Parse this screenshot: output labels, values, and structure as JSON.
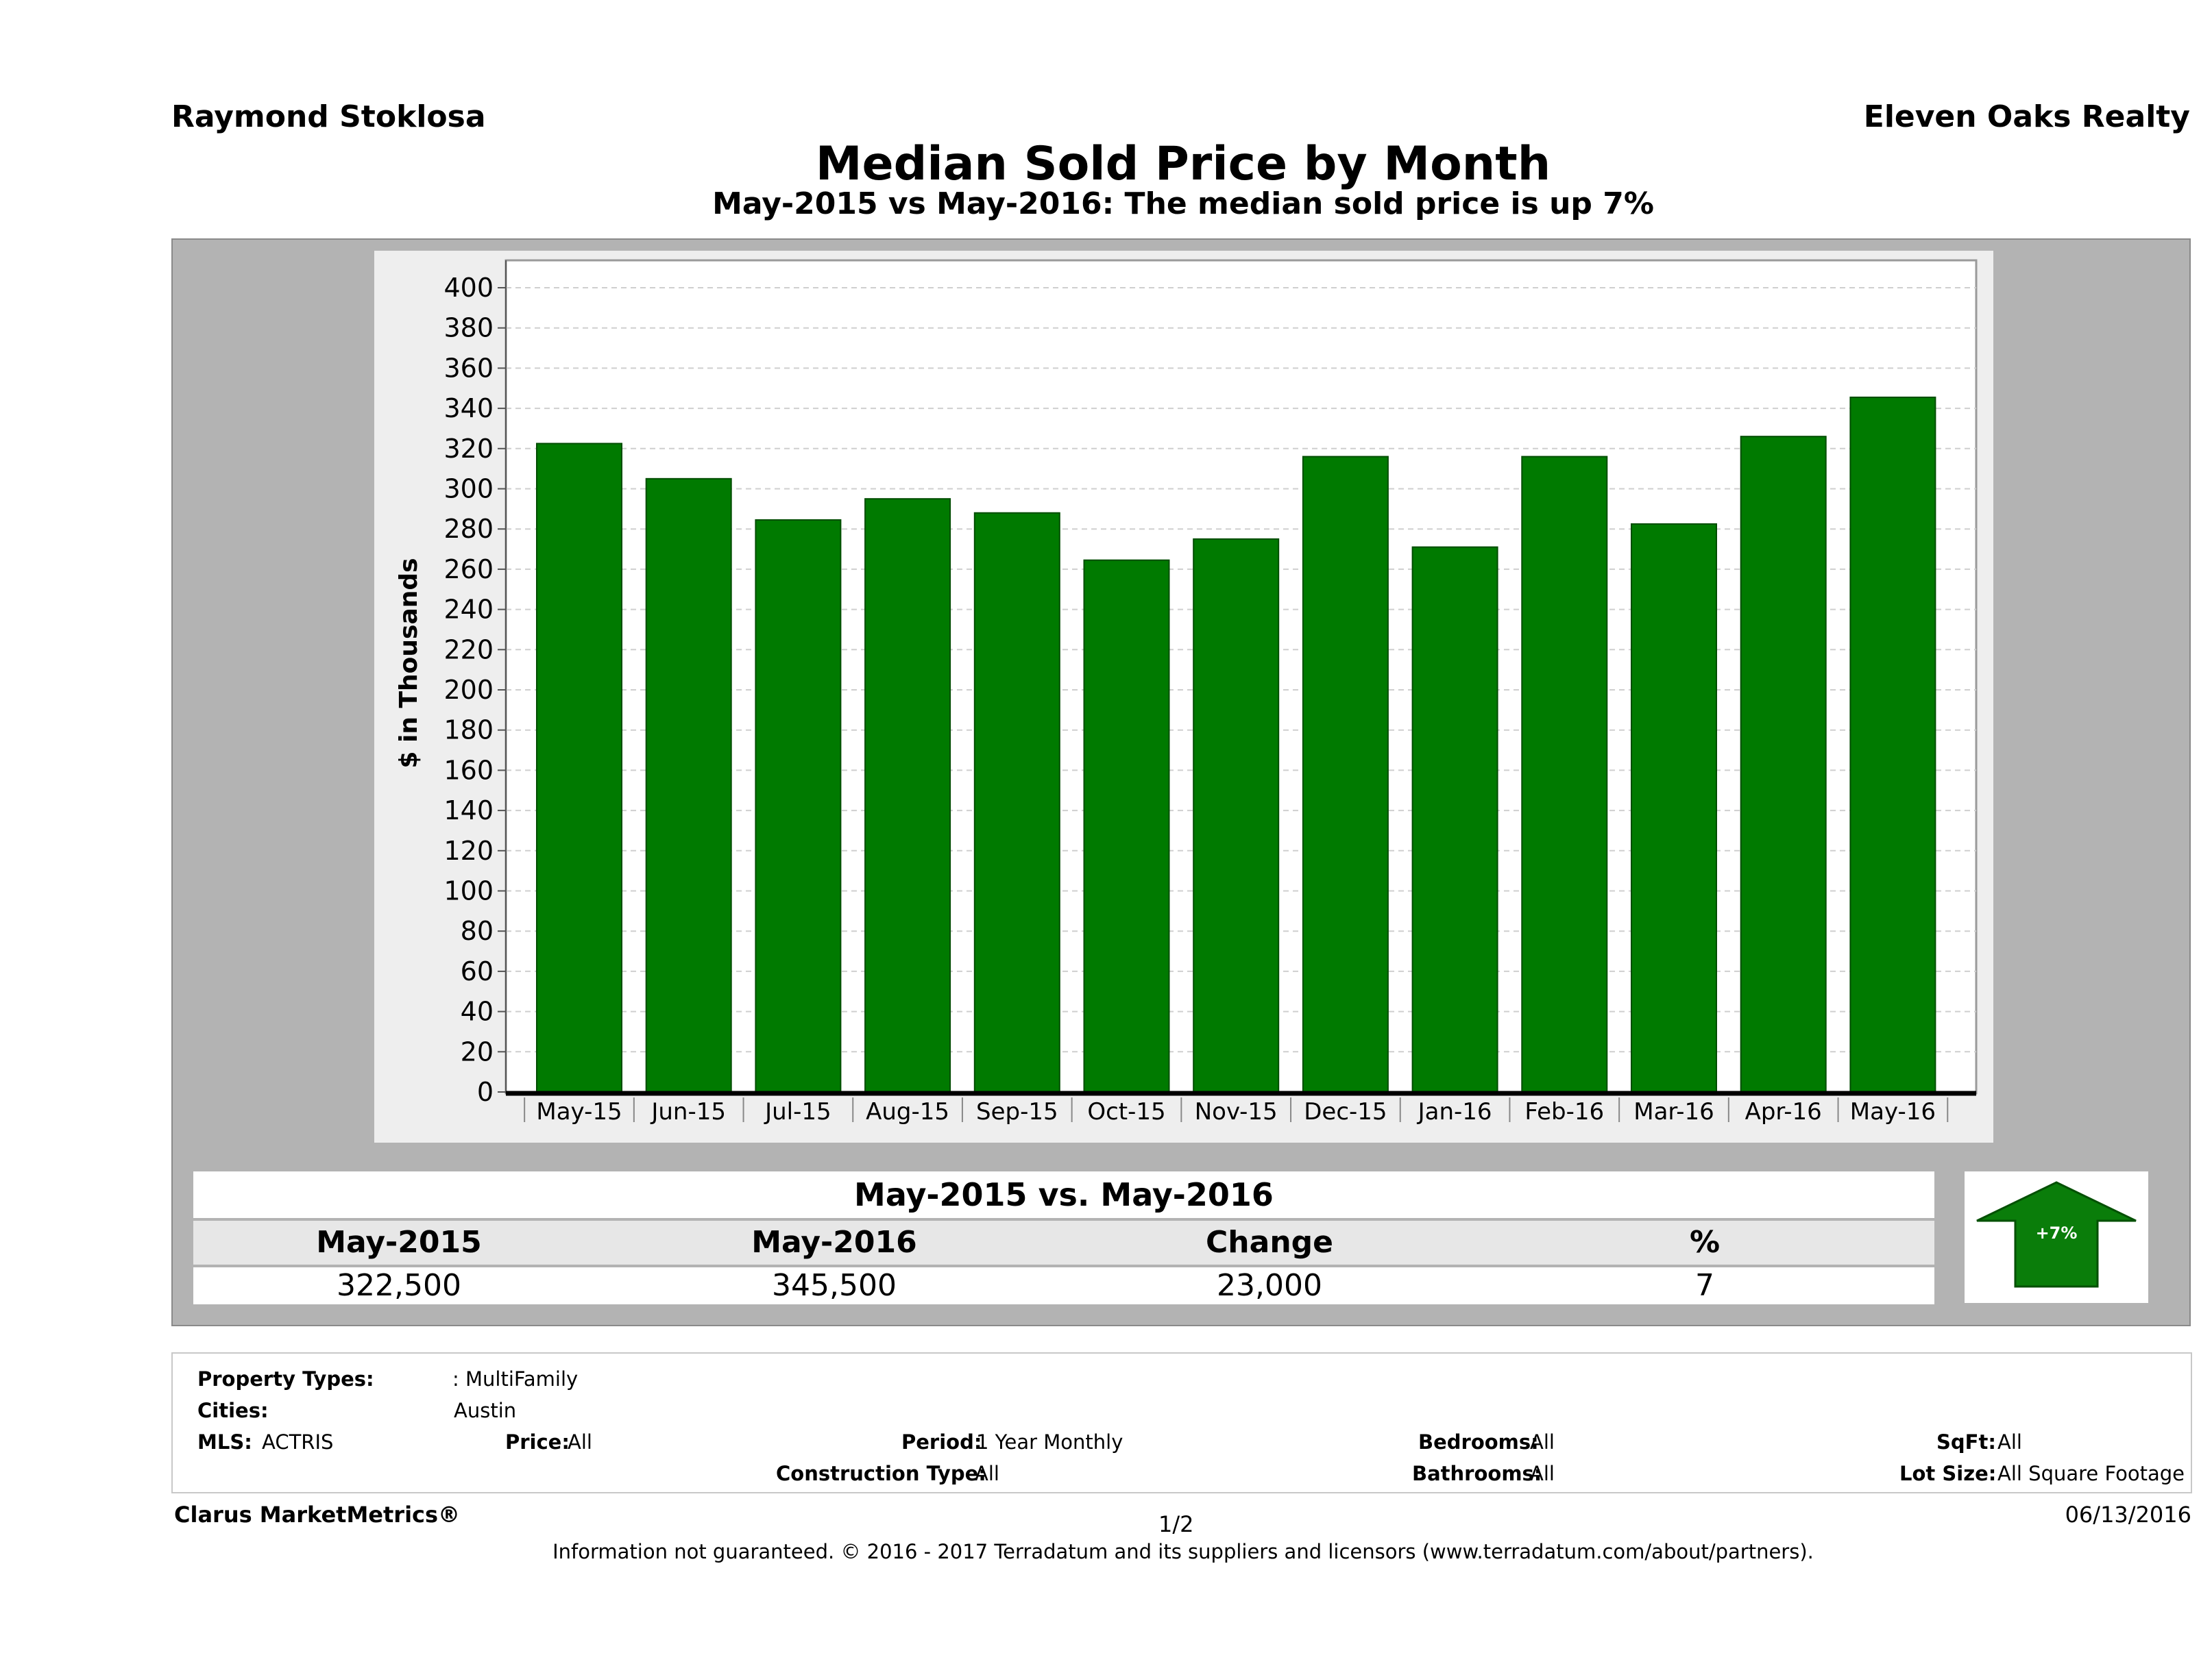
{
  "header": {
    "agent": "Raymond Stoklosa",
    "brokerage": "Eleven Oaks Realty",
    "title": "Median Sold Price by Month",
    "subtitle": "May-2015 vs May-2016: The median sold price is up 7%"
  },
  "chart_data": {
    "type": "bar",
    "categories": [
      "May-15",
      "Jun-15",
      "Jul-15",
      "Aug-15",
      "Sep-15",
      "Oct-15",
      "Nov-15",
      "Dec-15",
      "Jan-16",
      "Feb-16",
      "Mar-16",
      "Apr-16",
      "May-16"
    ],
    "values": [
      322.5,
      305,
      284.5,
      295,
      288,
      264.5,
      275,
      316,
      271,
      316,
      282.5,
      326,
      345.5
    ],
    "ylabel": "$ in Thousands",
    "xlabel": "",
    "ylim": [
      0,
      400
    ],
    "yticks": [
      0,
      20,
      40,
      60,
      80,
      100,
      120,
      140,
      160,
      180,
      200,
      220,
      240,
      260,
      280,
      300,
      320,
      340,
      360,
      380,
      400
    ],
    "grid": true,
    "bar_color": "#007a00"
  },
  "summary": {
    "heading": "May-2015 vs. May-2016",
    "columns": [
      "May-2015",
      "May-2016",
      "Change",
      "%"
    ],
    "values": [
      "322,500",
      "345,500",
      "23,000",
      "7"
    ],
    "badge": "+7%",
    "badge_color": "#0a7d0a"
  },
  "filters": {
    "property_types_label": "Property Types:",
    "property_types_value": ": MultiFamily",
    "cities_label": "Cities:",
    "cities_value": "Austin",
    "mls_label": "MLS:",
    "mls_value": "ACTRIS",
    "price_label": "Price:",
    "price_value": "All",
    "period_label": "Period:",
    "period_value": "1 Year Monthly",
    "bedrooms_label": "Bedrooms:",
    "bedrooms_value": "All",
    "sqft_label": "SqFt:",
    "sqft_value": "All",
    "construction_label": "Construction Type:",
    "construction_value": "All",
    "bathrooms_label": "Bathrooms:",
    "bathrooms_value": "All",
    "lot_label": "Lot Size:",
    "lot_value": "All Square Footage"
  },
  "footer": {
    "brand": "Clarus MarketMetrics®",
    "page": "1/2",
    "date": "06/13/2016",
    "note": "Information not guaranteed. © 2016 - 2017 Terradatum and its suppliers and licensors (www.terradatum.com/about/partners)."
  }
}
